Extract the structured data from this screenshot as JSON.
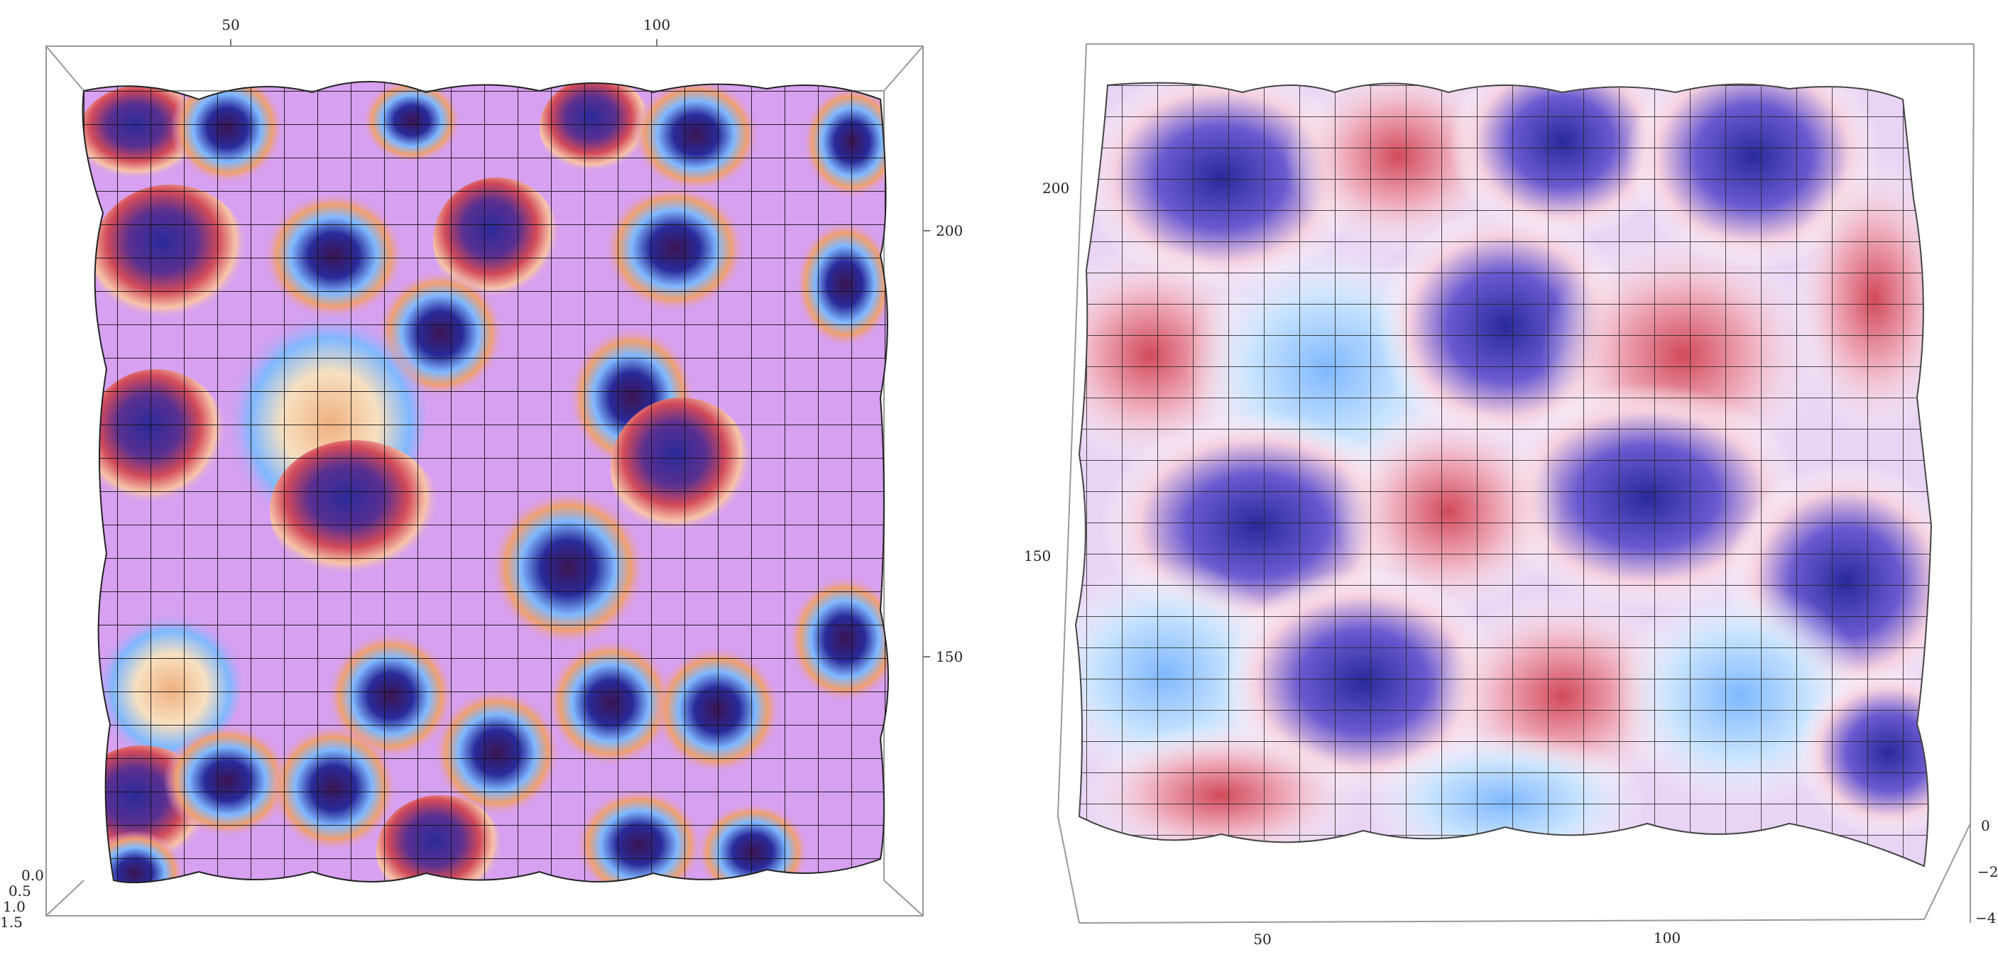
{
  "panels": [
    {
      "id": "left",
      "view": "top-down",
      "tick_labels_top": [
        "50",
        "100"
      ],
      "tick_labels_right": [
        "200",
        "150"
      ],
      "tick_labels_corner": [
        "0.0",
        "0.5",
        "1.0",
        "1.5"
      ]
    },
    {
      "id": "right",
      "view": "oblique",
      "tick_labels_left": [
        "200",
        "150"
      ],
      "tick_labels_bottom": [
        "50",
        "100"
      ],
      "tick_labels_depth": [
        "0",
        "−2",
        "−4"
      ]
    }
  ],
  "colors": {
    "background": "#ffffff",
    "flat_surface": "#d7a0f0",
    "deep_blue": "#2a2a9a",
    "dark_purple": "#3a1450",
    "light_blue": "#7fb8ff",
    "orange": "#f0a070",
    "red": "#d24a5a",
    "grid_line": "#111111",
    "box_line": "#999999"
  }
}
